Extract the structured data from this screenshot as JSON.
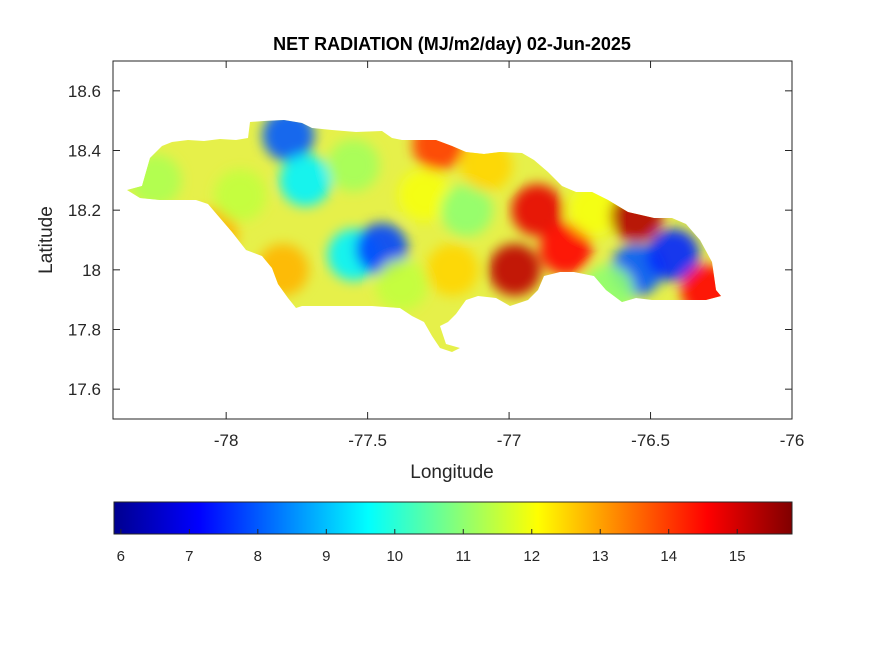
{
  "chart_data": {
    "type": "heatmap",
    "title": "NET RADIATION (MJ/m2/day) 02-Jun-2025",
    "xlabel": "Longitude",
    "ylabel": "Latitude",
    "xlim": [
      -78.4,
      -76
    ],
    "ylim": [
      17.5,
      18.7
    ],
    "xticks": [
      -78,
      -77.5,
      -77,
      -76.5,
      -76
    ],
    "yticks": [
      17.6,
      17.8,
      18,
      18.2,
      18.4,
      18.6
    ],
    "xtick_labels": [
      "-78",
      "-77.5",
      "-77",
      "-76.5",
      "-76"
    ],
    "ytick_labels": [
      "17.6",
      "17.8",
      "18",
      "18.2",
      "18.4",
      "18.6"
    ],
    "colorbar": {
      "orientation": "horizontal",
      "colormap": "jet",
      "range": [
        5.9,
        15.8
      ],
      "ticks": [
        6,
        7,
        8,
        9,
        10,
        11,
        12,
        13,
        14,
        15
      ],
      "tick_labels": [
        "6",
        "7",
        "8",
        "9",
        "10",
        "11",
        "12",
        "13",
        "14",
        "15"
      ]
    },
    "hotspots": [
      {
        "lon": -78.25,
        "lat": 18.3,
        "value": 11.3
      },
      {
        "lon": -78.05,
        "lat": 18.12,
        "value": 12.8
      },
      {
        "lon": -77.95,
        "lat": 18.25,
        "value": 11.5
      },
      {
        "lon": -77.78,
        "lat": 18.45,
        "value": 8.0
      },
      {
        "lon": -77.72,
        "lat": 18.3,
        "value": 9.5
      },
      {
        "lon": -77.8,
        "lat": 18.0,
        "value": 12.8
      },
      {
        "lon": -77.95,
        "lat": 17.9,
        "value": 14.0
      },
      {
        "lon": -77.55,
        "lat": 18.35,
        "value": 11.2
      },
      {
        "lon": -77.55,
        "lat": 18.05,
        "value": 9.5
      },
      {
        "lon": -77.45,
        "lat": 18.07,
        "value": 7.8
      },
      {
        "lon": -77.38,
        "lat": 17.95,
        "value": 11.5
      },
      {
        "lon": -77.3,
        "lat": 18.25,
        "value": 12.0
      },
      {
        "lon": -77.25,
        "lat": 18.42,
        "value": 14.0
      },
      {
        "lon": -77.2,
        "lat": 18.0,
        "value": 12.5
      },
      {
        "lon": -77.15,
        "lat": 18.2,
        "value": 11.0
      },
      {
        "lon": -77.08,
        "lat": 18.35,
        "value": 12.5
      },
      {
        "lon": -76.98,
        "lat": 18.0,
        "value": 15.2
      },
      {
        "lon": -76.9,
        "lat": 18.2,
        "value": 14.8
      },
      {
        "lon": -76.8,
        "lat": 18.07,
        "value": 14.5
      },
      {
        "lon": -76.7,
        "lat": 18.2,
        "value": 12.0
      },
      {
        "lon": -76.55,
        "lat": 18.18,
        "value": 15.3
      },
      {
        "lon": -76.55,
        "lat": 18.0,
        "value": 8.0
      },
      {
        "lon": -76.42,
        "lat": 18.05,
        "value": 7.5
      },
      {
        "lon": -76.65,
        "lat": 17.93,
        "value": 11.0
      },
      {
        "lon": -76.3,
        "lat": 17.93,
        "value": 14.5
      }
    ]
  }
}
